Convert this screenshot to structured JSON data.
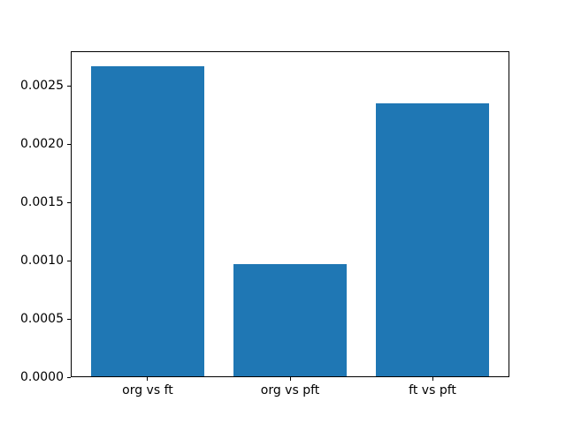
{
  "figure": {
    "background": "#ffffff"
  },
  "chart_data": {
    "type": "bar",
    "title": "",
    "xlabel": "",
    "ylabel": "",
    "categories": [
      "org vs ft",
      "org vs pft",
      "ft vs pft"
    ],
    "values": [
      0.00267,
      0.00097,
      0.00235
    ],
    "bar_color": "#1f77b4",
    "bar_width": 0.8,
    "xlim": [
      -0.54,
      2.54
    ],
    "ylim": [
      0,
      0.0028
    ],
    "yticks": [
      0.0,
      0.0005,
      0.001,
      0.0015,
      0.002,
      0.0025
    ],
    "ytick_labels": [
      "0.0000",
      "0.0005",
      "0.0010",
      "0.0015",
      "0.0020",
      "0.0025"
    ],
    "grid": false,
    "legend": null,
    "axis_color": "#000000",
    "text_color": "#000000"
  }
}
